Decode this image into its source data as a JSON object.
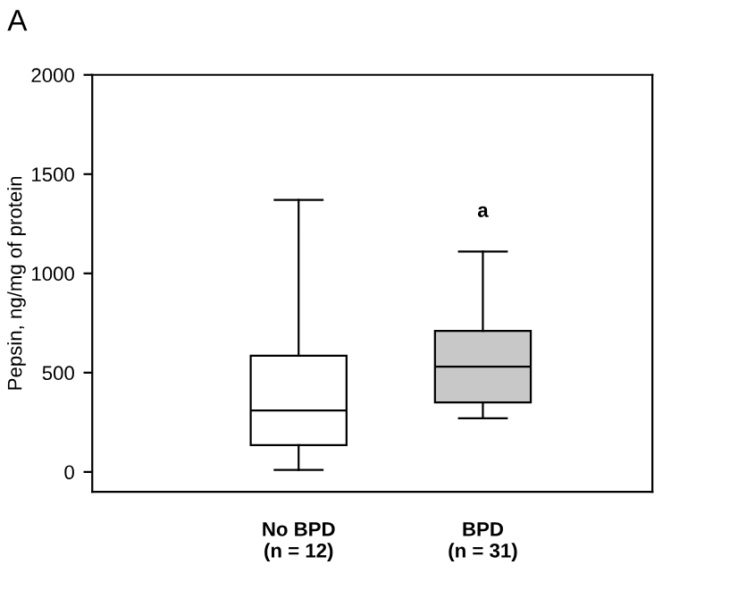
{
  "chart_data": {
    "type": "box",
    "ylabel": "Pepsin, ng/mg of protein",
    "categories": [
      "No BPD\n(n = 12)",
      "BPD\n(n = 31)"
    ],
    "boxes": [
      {
        "low": 10,
        "q1": 135,
        "median": 310,
        "q3": 585,
        "high": 1370
      },
      {
        "low": 270,
        "q1": 350,
        "median": 530,
        "q3": 710,
        "high": 1110
      }
    ],
    "colors": [
      "#ffffff",
      "#c8c8c8"
    ],
    "ylim": [
      -100,
      2000
    ],
    "yticks": [
      0,
      500,
      1000,
      1500,
      2000
    ],
    "grid": false,
    "annotations": [
      "A",
      "a"
    ]
  }
}
